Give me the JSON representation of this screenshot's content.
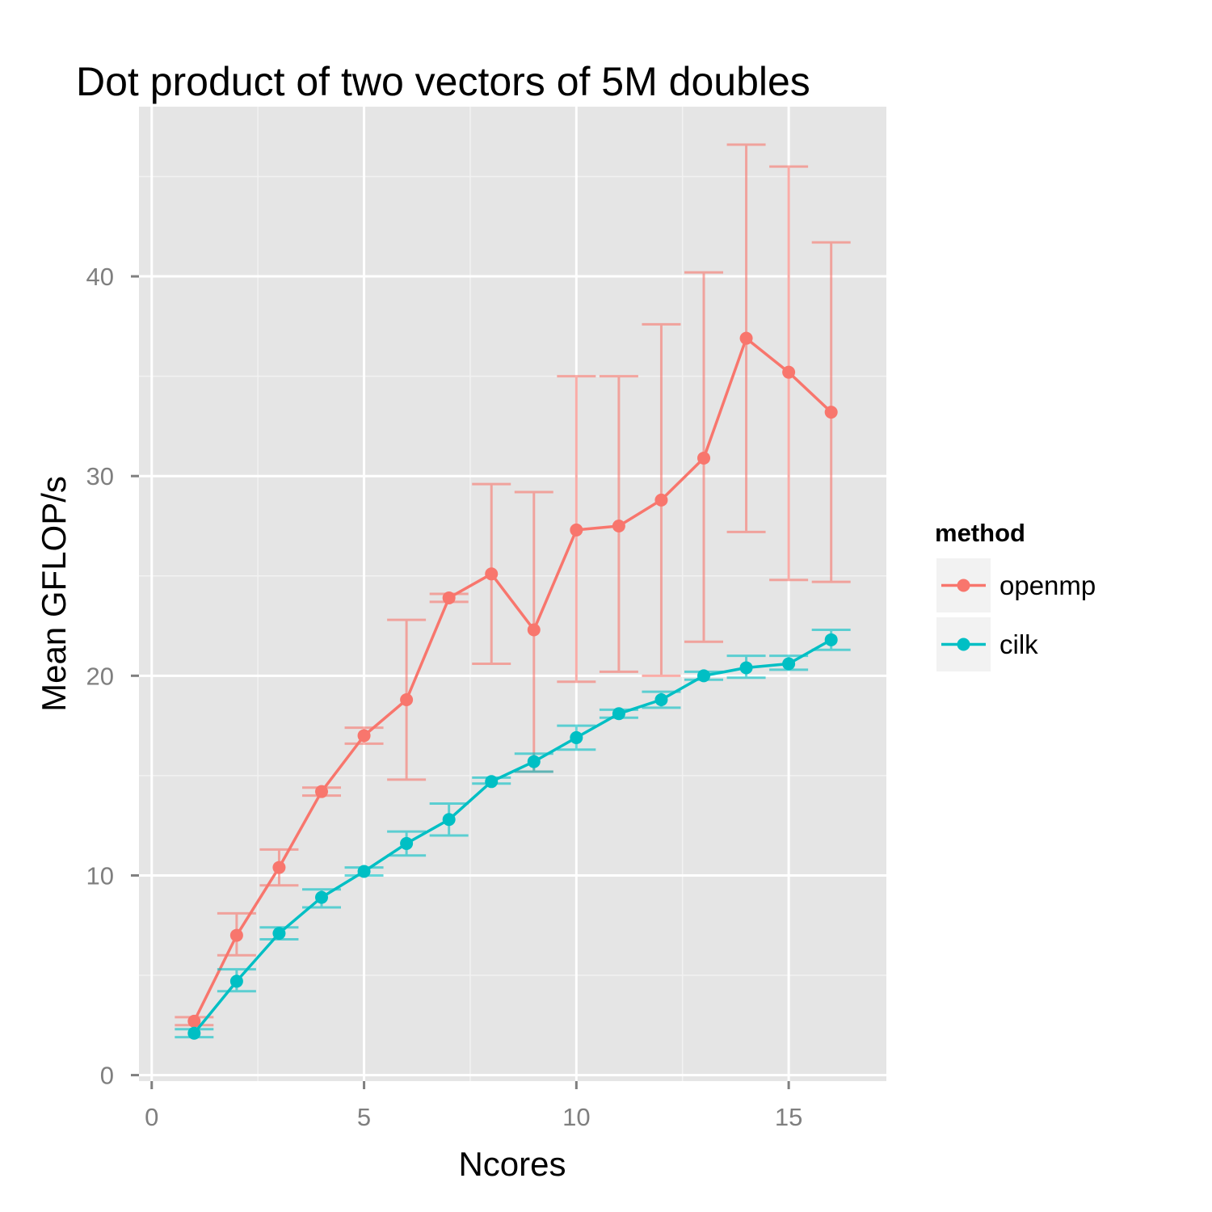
{
  "chart_data": {
    "type": "line",
    "title": "Dot product of two vectors of 5M doubles",
    "xlabel": "Ncores",
    "ylabel": "Mean GFLOP/s",
    "xlim": [
      -0.3,
      17.3
    ],
    "ylim": [
      -0.3,
      48.5
    ],
    "x_ticks": [
      0,
      5,
      10,
      15
    ],
    "x_tick_labels": [
      "0",
      "5",
      "10",
      "15"
    ],
    "y_ticks": [
      0,
      10,
      20,
      30,
      40
    ],
    "y_tick_labels": [
      "0",
      "10",
      "20",
      "30",
      "40"
    ],
    "x_minor_ticks": [
      2.5,
      7.5,
      12.5
    ],
    "y_minor_ticks": [
      5,
      15,
      25,
      35,
      45
    ],
    "grid": true,
    "legend": {
      "title": "method",
      "position": "right"
    },
    "series": [
      {
        "name": "openmp",
        "color": "#f8766d",
        "x": [
          1,
          2,
          3,
          4,
          5,
          6,
          7,
          8,
          9,
          10,
          11,
          12,
          13,
          14,
          15,
          16
        ],
        "y": [
          2.7,
          7.0,
          10.4,
          14.2,
          17.0,
          18.8,
          23.9,
          25.1,
          22.3,
          27.3,
          27.5,
          28.8,
          30.9,
          36.9,
          35.2,
          33.2
        ],
        "err_low": [
          2.5,
          6.0,
          9.5,
          14.0,
          16.6,
          14.8,
          23.7,
          20.6,
          15.2,
          19.7,
          20.2,
          20.0,
          21.7,
          27.2,
          24.8,
          24.7
        ],
        "err_high": [
          2.9,
          8.1,
          11.3,
          14.4,
          17.4,
          22.8,
          24.1,
          29.6,
          29.2,
          35.0,
          35.0,
          37.6,
          40.2,
          46.6,
          45.5,
          41.7
        ]
      },
      {
        "name": "cilk",
        "color": "#00bfc4",
        "x": [
          1,
          2,
          3,
          4,
          5,
          6,
          7,
          8,
          9,
          10,
          11,
          12,
          13,
          14,
          15,
          16
        ],
        "y": [
          2.1,
          4.7,
          7.1,
          8.9,
          10.2,
          11.6,
          12.8,
          14.7,
          15.7,
          16.9,
          18.1,
          18.8,
          20.0,
          20.4,
          20.6,
          21.8
        ],
        "err_low": [
          1.9,
          4.2,
          6.8,
          8.4,
          10.0,
          11.0,
          12.0,
          14.6,
          15.2,
          16.3,
          17.9,
          18.4,
          19.8,
          19.9,
          20.3,
          21.3
        ],
        "err_high": [
          2.3,
          5.3,
          7.4,
          9.3,
          10.4,
          12.2,
          13.6,
          14.9,
          16.1,
          17.5,
          18.3,
          19.2,
          20.2,
          21.0,
          21.0,
          22.3
        ]
      }
    ]
  }
}
